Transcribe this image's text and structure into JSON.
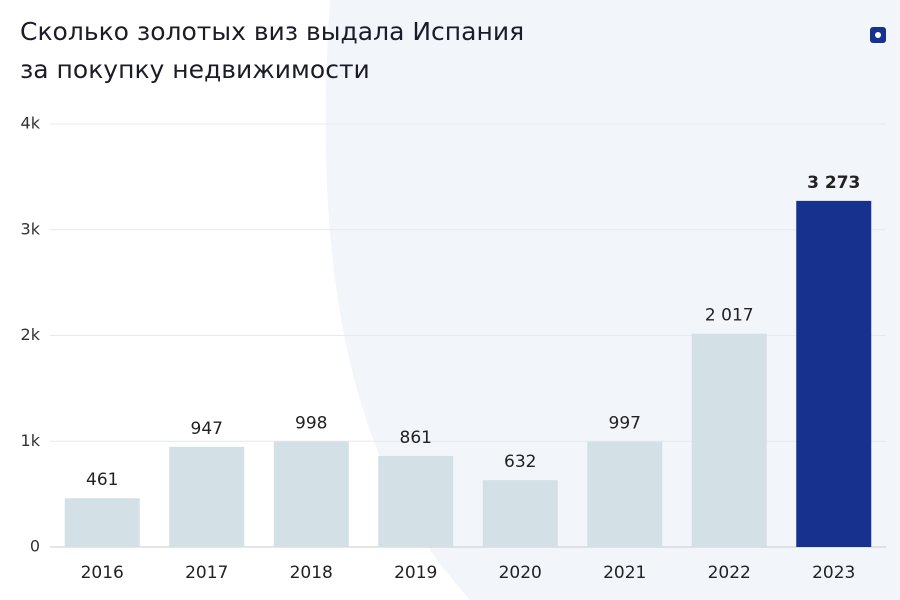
{
  "chart_data": {
    "type": "bar",
    "title": [
      "Сколько золотых виз выдала Испания",
      "за покупку недвижимости"
    ],
    "categories": [
      "2016",
      "2017",
      "2018",
      "2019",
      "2020",
      "2021",
      "2022",
      "2023"
    ],
    "values": [
      461,
      947,
      998,
      861,
      632,
      997,
      2017,
      3273
    ],
    "value_labels": [
      "461",
      "947",
      "998",
      "861",
      "632",
      "997",
      "2 017",
      "3 273"
    ],
    "colors": [
      "#d3e0e6",
      "#d3e0e6",
      "#d3e0e6",
      "#d3e0e6",
      "#d3e0e6",
      "#d3e0e6",
      "#d3e0e6",
      "#17318f"
    ],
    "ylim": [
      0,
      4000
    ],
    "yticks": [
      0,
      {
        "value": 1000,
        "label": "1k"
      },
      {
        "value": 2000,
        "label": "2k"
      },
      {
        "value": 3000,
        "label": "3k"
      },
      {
        "value": 4000,
        "label": "4k"
      }
    ],
    "grid": true
  }
}
